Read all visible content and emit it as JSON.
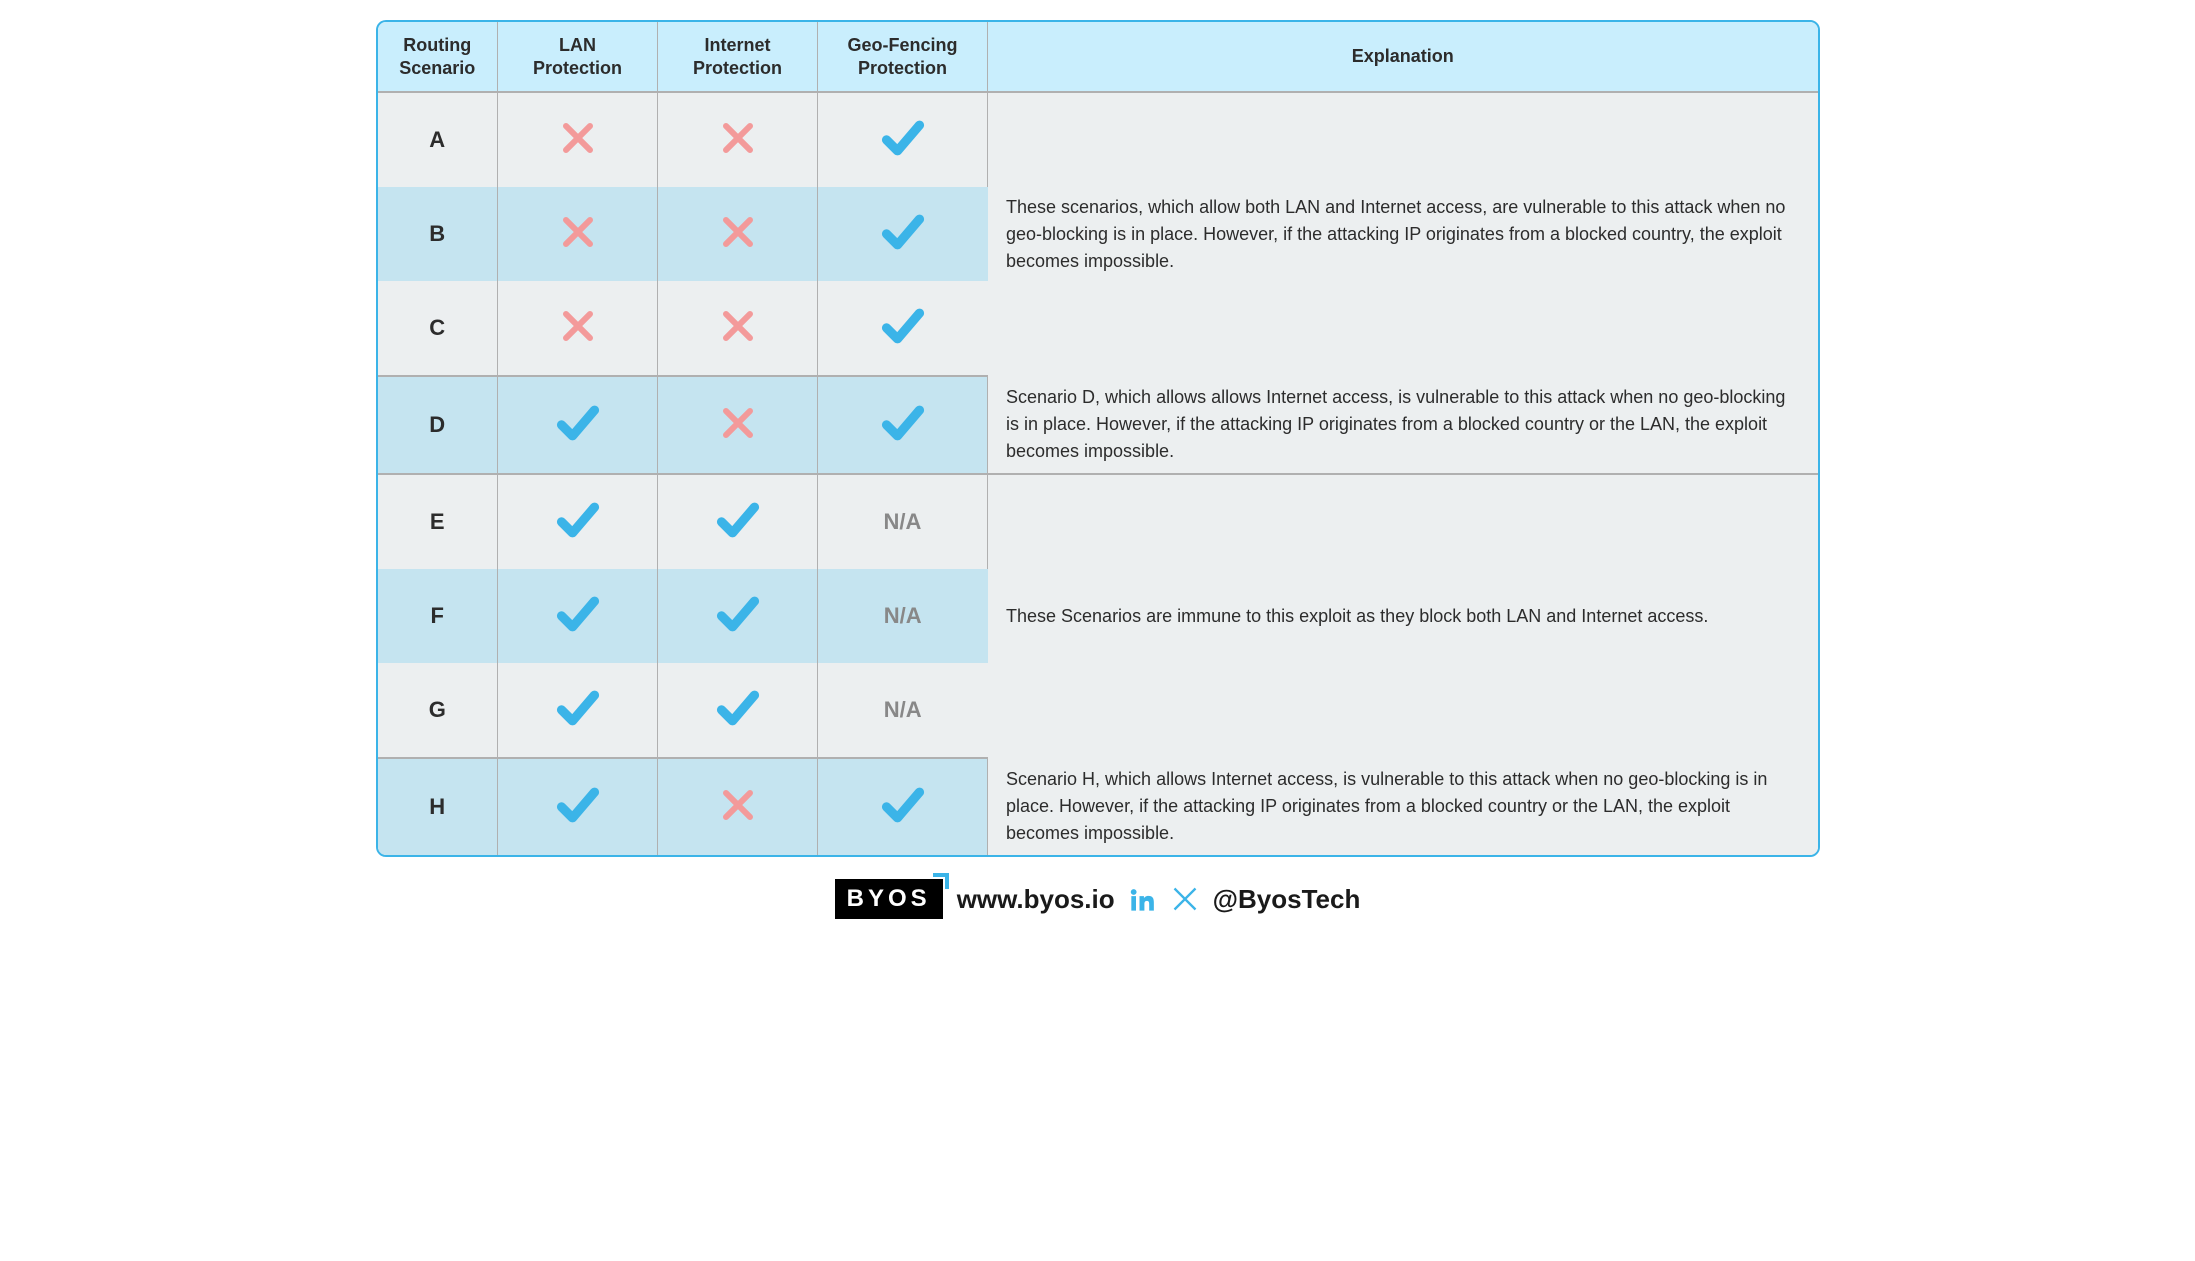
{
  "colors": {
    "border": "#3bb4e8",
    "header_bg": "#c9eefd",
    "row_light": "#eceff0",
    "row_blue": "#c5e4f0",
    "check": "#3bb4e8",
    "x": "#f39a9a",
    "na": "#888888",
    "linkedin": "#3bb4e8",
    "xsocial": "#3bb4e8"
  },
  "columns": {
    "c0": "Routing\nScenario",
    "c1": "LAN\nProtection",
    "c2": "Internet\nProtection",
    "c3": "Geo-Fencing\nProtection",
    "c4": "Explanation"
  },
  "col_widths": {
    "c0": 120,
    "c1": 160,
    "c2": 160,
    "c3": 170,
    "c4": 830
  },
  "groups": [
    {
      "explanation": "These scenarios, which allow both LAN and Internet access, are vulnerable to this attack when no geo-blocking is in place. However, if the attacking IP originates from a blocked country, the exploit becomes impossible.",
      "rows": [
        {
          "scenario": "A",
          "lan": "x",
          "internet": "x",
          "geo": "check",
          "bg": "light"
        },
        {
          "scenario": "B",
          "lan": "x",
          "internet": "x",
          "geo": "check",
          "bg": "blue"
        },
        {
          "scenario": "C",
          "lan": "x",
          "internet": "x",
          "geo": "check",
          "bg": "light"
        }
      ]
    },
    {
      "explanation": "Scenario D, which allows allows Internet access, is vulnerable to this attack when no geo-blocking is in place. However, if the attacking IP originates from a blocked country or the LAN, the exploit becomes impossible.",
      "rows": [
        {
          "scenario": "D",
          "lan": "check",
          "internet": "x",
          "geo": "check",
          "bg": "blue"
        }
      ]
    },
    {
      "explanation": "These Scenarios are immune to this exploit as they block both LAN and Internet access.",
      "rows": [
        {
          "scenario": "E",
          "lan": "check",
          "internet": "check",
          "geo": "na",
          "bg": "light"
        },
        {
          "scenario": "F",
          "lan": "check",
          "internet": "check",
          "geo": "na",
          "bg": "blue"
        },
        {
          "scenario": "G",
          "lan": "check",
          "internet": "check",
          "geo": "na",
          "bg": "light"
        }
      ]
    },
    {
      "explanation": "Scenario H, which allows Internet access, is vulnerable to this attack when no geo-blocking is in place. However, if the attacking IP originates from a blocked country or the LAN, the exploit becomes impossible.",
      "rows": [
        {
          "scenario": "H",
          "lan": "check",
          "internet": "x",
          "geo": "check",
          "bg": "blue"
        }
      ]
    }
  ],
  "na_text": "N/A",
  "footer": {
    "logo_text": "BYOS",
    "url": "www.byos.io",
    "handle": "@ByosTech"
  }
}
